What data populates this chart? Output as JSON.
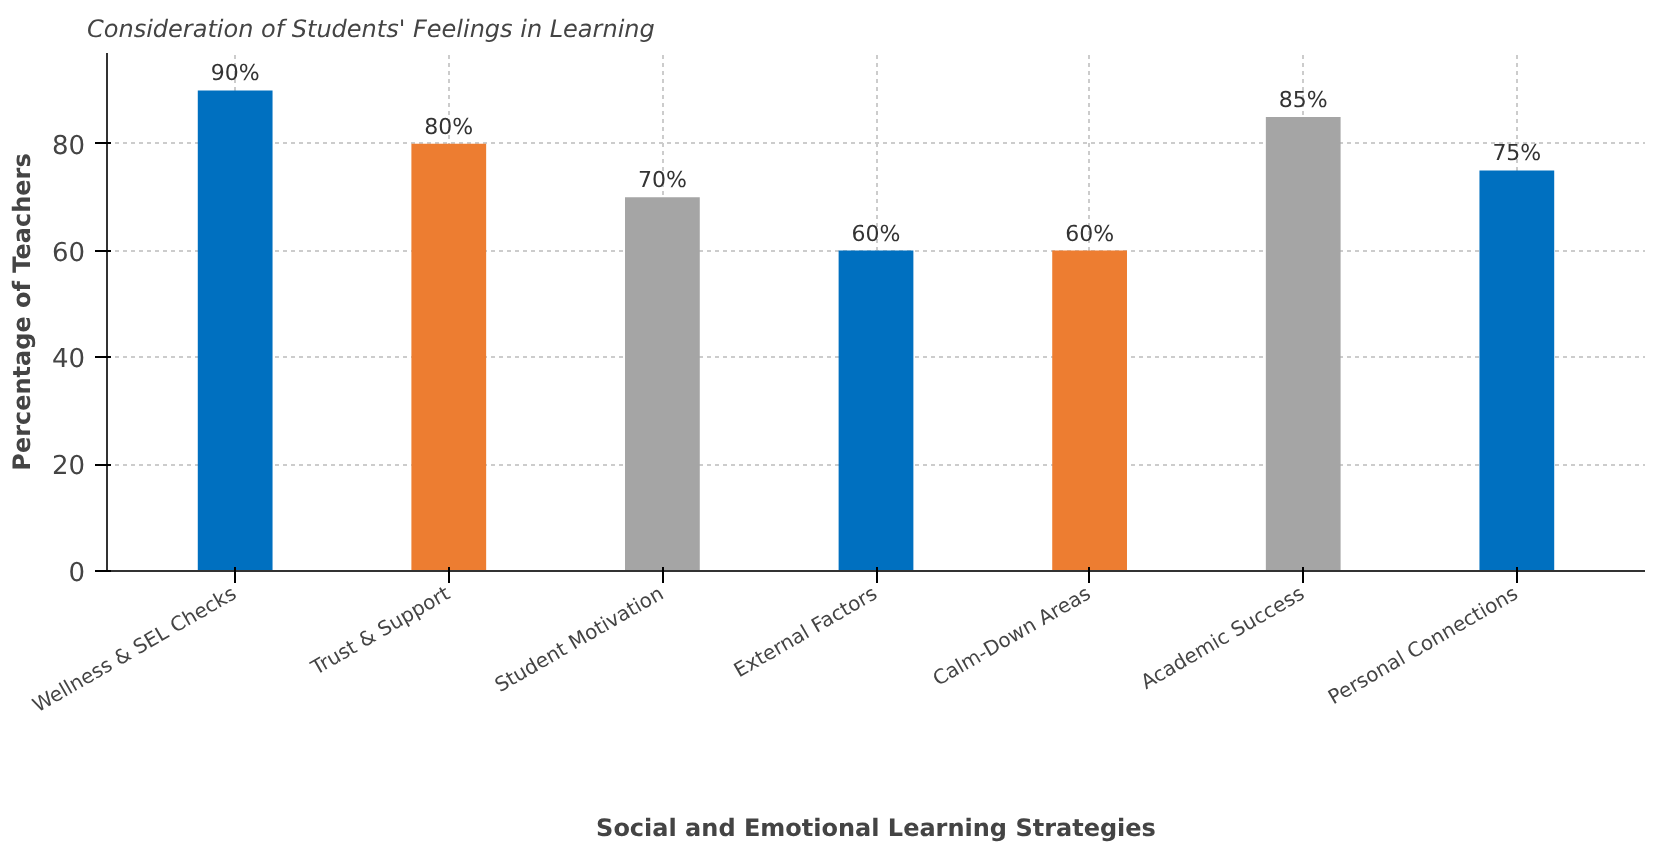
{
  "chart_data": {
    "type": "bar",
    "title": "Consideration of Students' Feelings in Learning",
    "xlabel": "Social and Emotional Learning Strategies",
    "ylabel": "Percentage of Teachers",
    "categories": [
      "Wellness & SEL Checks",
      "Trust & Support",
      "Student Motivation",
      "External Factors",
      "Calm-Down Areas",
      "Academic Success",
      "Personal Connections"
    ],
    "values": [
      90,
      80,
      70,
      60,
      60,
      85,
      75
    ],
    "colors": [
      "#0070c0",
      "#ed7d31",
      "#a5a5a5",
      "#0070c0",
      "#ed7d31",
      "#a5a5a5",
      "#0070c0"
    ],
    "value_labels": [
      "90%",
      "80%",
      "70%",
      "60%",
      "60%",
      "85%",
      "75%"
    ],
    "ylim": [
      0,
      97
    ],
    "yticks": [
      0,
      20,
      40,
      60,
      80
    ],
    "grid": true
  }
}
